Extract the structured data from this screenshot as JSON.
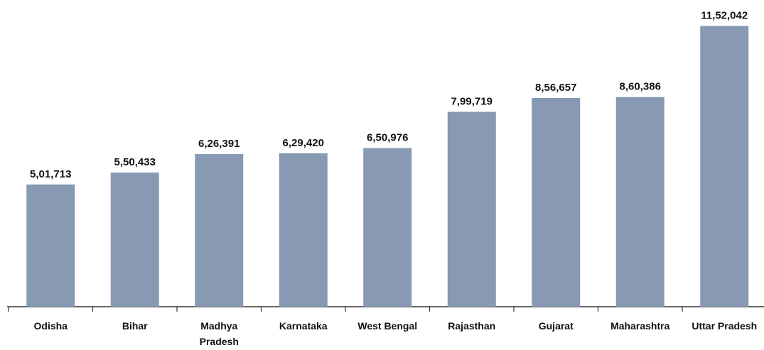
{
  "chart_data": {
    "type": "bar",
    "categories": [
      "Odisha",
      "Bihar",
      "Madhya Pradesh",
      "Karnataka",
      "West Bengal",
      "Rajasthan",
      "Gujarat",
      "Maharashtra",
      "Uttar Pradesh"
    ],
    "values": [
      501713,
      550433,
      626391,
      629420,
      650976,
      799719,
      856657,
      860386,
      1152042
    ],
    "value_labels": [
      "5,01,713",
      "5,50,433",
      "6,26,391",
      "6,29,420",
      "6,50,976",
      "7,99,719",
      "8,56,657",
      "8,60,386",
      "11,52,042"
    ],
    "color": "#8799b3",
    "ylim": [
      0,
      1250000
    ]
  }
}
